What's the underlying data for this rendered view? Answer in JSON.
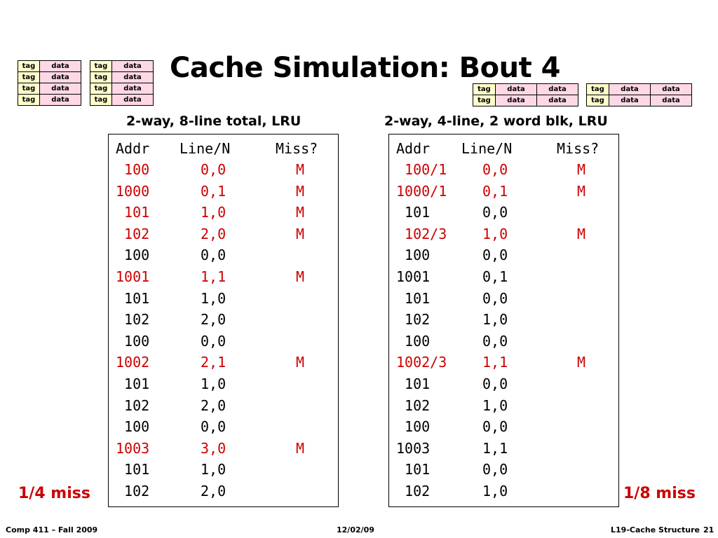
{
  "title": "Cache Simulation: Bout 4",
  "cache_labels": {
    "tag": "tag",
    "data": "data"
  },
  "left_panel": {
    "subtitle": "2-way, 8-line total, LRU",
    "headers": {
      "addr": "Addr",
      "line": "Line/N",
      "miss": "Miss?"
    },
    "rows": [
      {
        "addr": " 100",
        "line": "0,0",
        "miss": "M"
      },
      {
        "addr": "1000",
        "line": "0,1",
        "miss": "M"
      },
      {
        "addr": " 101",
        "line": "1,0",
        "miss": "M"
      },
      {
        "addr": " 102",
        "line": "2,0",
        "miss": "M"
      },
      {
        "addr": " 100",
        "line": "0,0",
        "miss": ""
      },
      {
        "addr": "1001",
        "line": "1,1",
        "miss": "M"
      },
      {
        "addr": " 101",
        "line": "1,0",
        "miss": ""
      },
      {
        "addr": " 102",
        "line": "2,0",
        "miss": ""
      },
      {
        "addr": " 100",
        "line": "0,0",
        "miss": ""
      },
      {
        "addr": "1002",
        "line": "2,1",
        "miss": "M"
      },
      {
        "addr": " 101",
        "line": "1,0",
        "miss": ""
      },
      {
        "addr": " 102",
        "line": "2,0",
        "miss": ""
      },
      {
        "addr": " 100",
        "line": "0,0",
        "miss": ""
      },
      {
        "addr": "1003",
        "line": "3,0",
        "miss": "M"
      },
      {
        "addr": " 101",
        "line": "1,0",
        "miss": ""
      },
      {
        "addr": " 102",
        "line": "2,0",
        "miss": ""
      }
    ],
    "miss_rate": "1/4 miss"
  },
  "right_panel": {
    "subtitle": "2-way, 4-line, 2 word blk, LRU",
    "headers": {
      "addr": "Addr",
      "line": "Line/N",
      "miss": "Miss?"
    },
    "rows": [
      {
        "addr": " 100/1",
        "line": "0,0",
        "miss": "M"
      },
      {
        "addr": "1000/1",
        "line": "0,1",
        "miss": "M"
      },
      {
        "addr": " 101",
        "line": "0,0",
        "miss": ""
      },
      {
        "addr": " 102/3",
        "line": "1,0",
        "miss": "M"
      },
      {
        "addr": " 100",
        "line": "0,0",
        "miss": ""
      },
      {
        "addr": "1001",
        "line": "0,1",
        "miss": ""
      },
      {
        "addr": " 101",
        "line": "0,0",
        "miss": ""
      },
      {
        "addr": " 102",
        "line": "1,0",
        "miss": ""
      },
      {
        "addr": " 100",
        "line": "0,0",
        "miss": ""
      },
      {
        "addr": "1002/3",
        "line": "1,1",
        "miss": "M"
      },
      {
        "addr": " 101",
        "line": "0,0",
        "miss": ""
      },
      {
        "addr": " 102",
        "line": "1,0",
        "miss": ""
      },
      {
        "addr": " 100",
        "line": "0,0",
        "miss": ""
      },
      {
        "addr": "1003",
        "line": "1,1",
        "miss": ""
      },
      {
        "addr": " 101",
        "line": "0,0",
        "miss": ""
      },
      {
        "addr": " 102",
        "line": "1,0",
        "miss": ""
      }
    ],
    "miss_rate": "1/8 miss"
  },
  "footer": {
    "course": "Comp 411 – Fall 2009",
    "date": "12/02/09",
    "lecture": "L19-Cache Structure",
    "page": "21"
  },
  "colors": {
    "miss_red": "#cc0000",
    "tag_fill": "#ffffcc",
    "data_fill": "#ffd8e6"
  }
}
